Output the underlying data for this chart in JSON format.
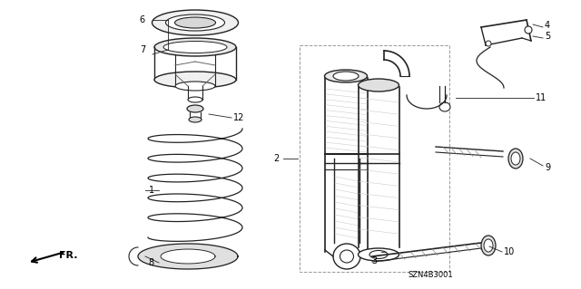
{
  "bg_color": "#ffffff",
  "line_color": "#222222",
  "diagram_code": "SZN4B3001"
}
